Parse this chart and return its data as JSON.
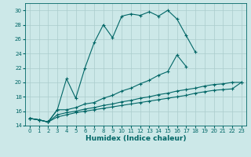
{
  "xlabel": "Humidex (Indice chaleur)",
  "background_color": "#cce8e8",
  "line_color": "#006666",
  "x_values": [
    0,
    1,
    2,
    3,
    4,
    5,
    6,
    7,
    8,
    9,
    10,
    11,
    12,
    13,
    14,
    15,
    16,
    17,
    18,
    19,
    20,
    21,
    22,
    23
  ],
  "line1_y": [
    15.0,
    14.8,
    14.5,
    16.2,
    20.5,
    17.8,
    22.0,
    25.5,
    28.0,
    26.2,
    29.2,
    29.5,
    29.3,
    29.8,
    29.2,
    30.0,
    28.8,
    26.5,
    24.2,
    null,
    null,
    null,
    null,
    null
  ],
  "line2_y": [
    15.0,
    14.8,
    14.5,
    16.2,
    16.2,
    16.5,
    17.0,
    17.2,
    17.8,
    18.2,
    18.8,
    19.2,
    19.8,
    20.3,
    21.0,
    21.5,
    23.8,
    22.2,
    null,
    null,
    null,
    null,
    null,
    null
  ],
  "line3_y": [
    15.0,
    14.8,
    14.5,
    15.5,
    15.8,
    16.0,
    16.3,
    16.5,
    16.8,
    17.0,
    17.3,
    17.5,
    17.8,
    18.0,
    18.3,
    18.5,
    18.8,
    19.0,
    19.2,
    19.5,
    19.7,
    19.8,
    20.0,
    20.0
  ],
  "line4_y": [
    15.0,
    14.8,
    14.5,
    15.2,
    15.5,
    15.8,
    16.0,
    16.2,
    16.4,
    16.6,
    16.8,
    17.0,
    17.2,
    17.4,
    17.6,
    17.8,
    18.0,
    18.2,
    18.5,
    18.7,
    18.9,
    19.0,
    19.1,
    20.0
  ],
  "ylim": [
    14,
    31
  ],
  "xlim": [
    -0.5,
    23.5
  ],
  "yticks": [
    14,
    16,
    18,
    20,
    22,
    24,
    26,
    28,
    30
  ],
  "xticks": [
    0,
    1,
    2,
    3,
    4,
    5,
    6,
    7,
    8,
    9,
    10,
    11,
    12,
    13,
    14,
    15,
    16,
    17,
    18,
    19,
    20,
    21,
    22,
    23
  ],
  "grid_color": "#aacccc",
  "marker": "+",
  "markersize": 3,
  "linewidth": 0.8,
  "tick_fontsize": 5,
  "label_fontsize": 6.5
}
